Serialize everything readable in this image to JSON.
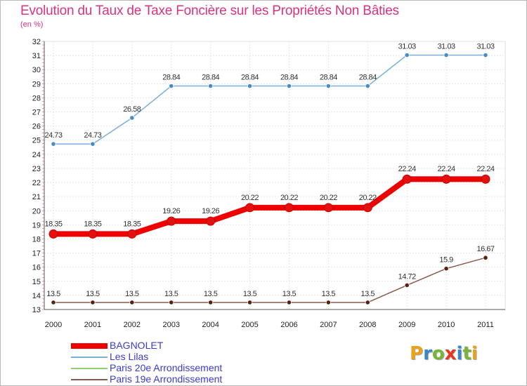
{
  "title": "Evolution du Taux de Taxe Foncière sur les Propriétés Non Bâties",
  "subtitle": "(en %)",
  "logo": {
    "text": "Proxiti",
    "colors": [
      "#e8a21b",
      "#3a86c8",
      "#79b43a",
      "#e8351f",
      "#3a86c8",
      "#79b43a",
      "#e8a21b"
    ]
  },
  "chart_data": {
    "type": "line",
    "title": "Evolution du Taux de Taxe Foncière sur les Propriétés Non Bâties",
    "ylabel": "(en %)",
    "xlabel": "",
    "categories": [
      "2000",
      "2001",
      "2002",
      "2003",
      "2004",
      "2005",
      "2006",
      "2007",
      "2008",
      "2009",
      "2010",
      "2011"
    ],
    "ylim": [
      13,
      32
    ],
    "yticks": [
      13,
      14,
      15,
      16,
      17,
      18,
      19,
      20,
      21,
      22,
      23,
      24,
      25,
      26,
      27,
      28,
      29,
      30,
      31,
      32
    ],
    "series": [
      {
        "name": "Les Lilas",
        "color": "#7aaedb",
        "marker": "#4a8bc4",
        "values": [
          24.73,
          24.73,
          26.58,
          28.84,
          28.84,
          28.84,
          28.84,
          28.84,
          28.84,
          31.03,
          31.03,
          31.03
        ],
        "labels": [
          "24.73",
          "24.73",
          "26.58",
          "28.84",
          "28.84",
          "28.84",
          "28.84",
          "28.84",
          "28.84",
          "31.03",
          "31.03",
          "31.03"
        ]
      },
      {
        "name": "BAGNOLET",
        "color": "#ee0000",
        "marker": "#e21010",
        "values": [
          18.35,
          18.35,
          18.35,
          19.26,
          19.26,
          20.22,
          20.22,
          20.22,
          20.22,
          22.24,
          22.24,
          22.24
        ],
        "labels": [
          "18.35",
          "18.35",
          "18.35",
          "19.26",
          "19.26",
          "20.22",
          "20.22",
          "20.22",
          "20.22",
          "22.24",
          "22.24",
          "22.24"
        ]
      },
      {
        "name": "Paris 19e  Arrondissement",
        "color": "#8a5a4a",
        "marker": "#5a1f10",
        "values": [
          13.5,
          13.5,
          13.5,
          13.5,
          13.5,
          13.5,
          13.5,
          13.5,
          13.5,
          14.72,
          15.9,
          16.67
        ],
        "labels": [
          "13.5",
          "13.5",
          "13.5",
          "13.5",
          "13.5",
          "13.5",
          "13.5",
          "13.5",
          "13.5",
          "14.72",
          "15.9",
          "16.67"
        ]
      }
    ],
    "legend": [
      {
        "name": "BAGNOLET",
        "color": "#ee0000"
      },
      {
        "name": "Les Lilas",
        "color": "#7aaedb"
      },
      {
        "name": "Paris 20e  Arrondissement",
        "color": "#90d070"
      },
      {
        "name": "Paris 19e  Arrondissement",
        "color": "#8a5a4a"
      }
    ]
  }
}
